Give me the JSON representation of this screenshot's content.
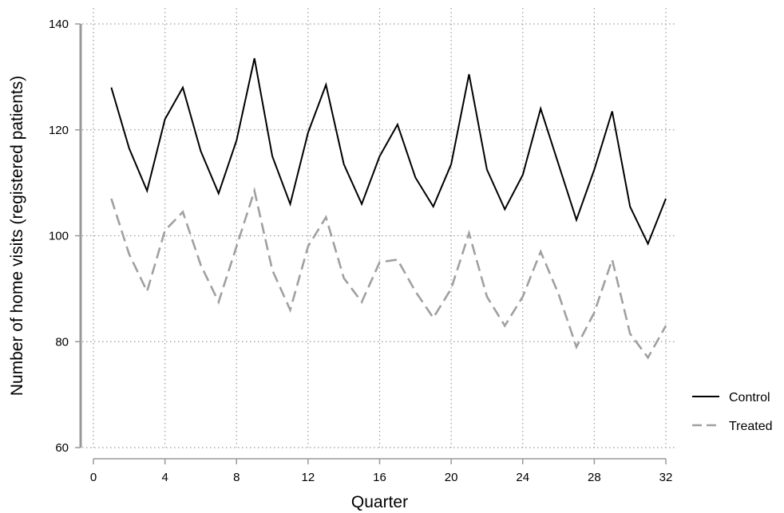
{
  "chart_data": {
    "type": "line",
    "title": "",
    "xlabel": "Quarter",
    "ylabel": "Number of home visits (registered patients)",
    "xlim": [
      0,
      32
    ],
    "ylim": [
      60,
      140
    ],
    "xticks": [
      "0",
      "4",
      "8",
      "12",
      "16",
      "20",
      "24",
      "28",
      "32"
    ],
    "yticks": [
      "60",
      "80",
      "100",
      "120",
      "140"
    ],
    "grid": true,
    "legend_position": "right",
    "x": [
      1,
      2,
      3,
      4,
      5,
      6,
      7,
      8,
      9,
      10,
      11,
      12,
      13,
      14,
      15,
      16,
      17,
      18,
      19,
      20,
      21,
      22,
      23,
      24,
      25,
      26,
      27,
      28,
      29,
      30,
      31,
      32
    ],
    "series": [
      {
        "name": "Control",
        "color": "#000000",
        "style": "solid",
        "values": [
          128,
          116.5,
          108.5,
          122,
          128,
          116,
          108,
          118,
          133.5,
          115,
          106,
          119.5,
          128.5,
          113.5,
          106,
          115,
          121,
          111,
          105.5,
          113.5,
          130.5,
          112.5,
          105,
          111.5,
          124,
          113.5,
          103,
          112.5,
          123.5,
          105.5,
          98.5,
          107
        ]
      },
      {
        "name": "Treated",
        "color": "#a0a0a0",
        "style": "dashed",
        "values": [
          107,
          96.5,
          89.5,
          101,
          104.5,
          94.5,
          87.5,
          98,
          108.5,
          93.5,
          86,
          98,
          103.5,
          92,
          87.5,
          95,
          95.5,
          89.5,
          84.5,
          90,
          100.5,
          88.5,
          83,
          88.5,
          97,
          89,
          79,
          85.5,
          95.5,
          81.5,
          77,
          83
        ]
      }
    ]
  }
}
